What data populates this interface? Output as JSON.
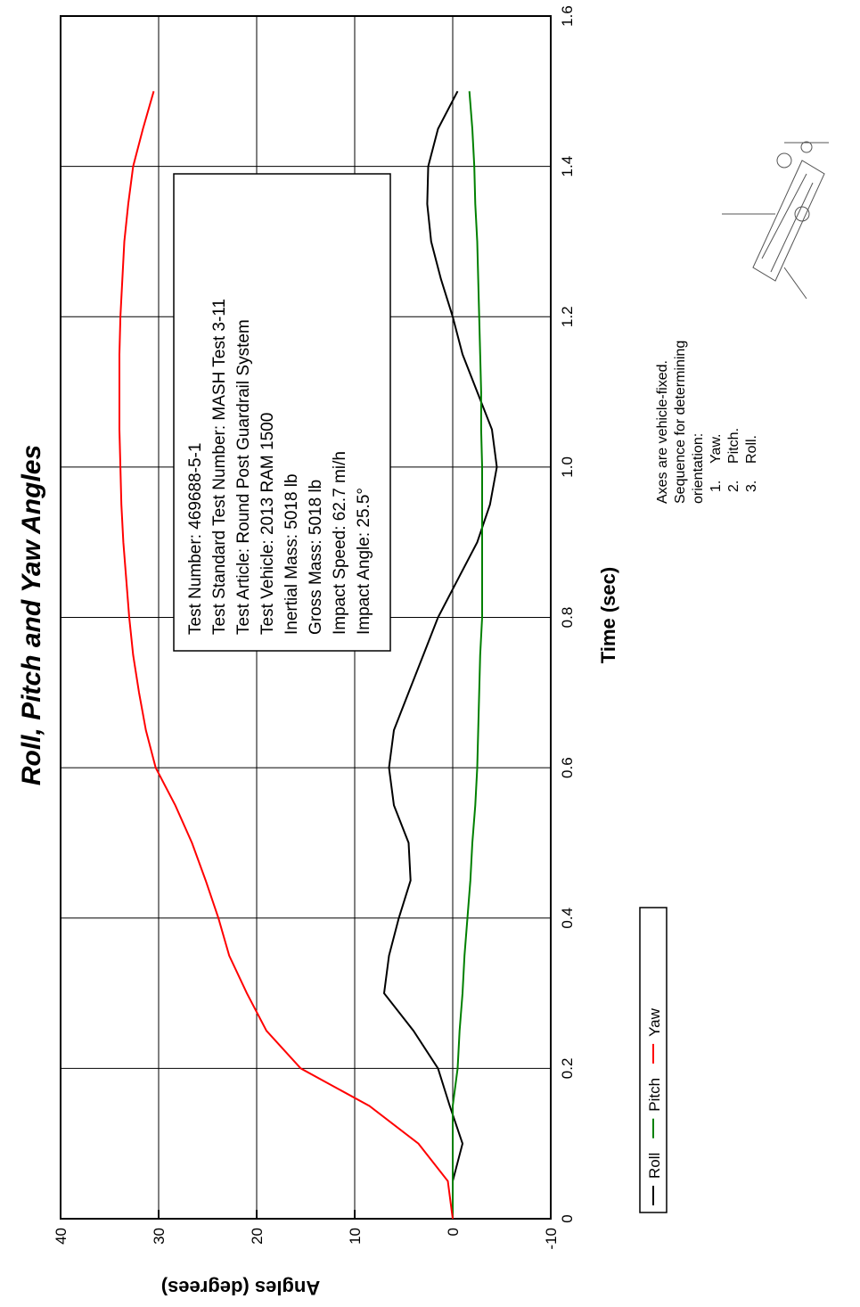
{
  "chart_data": {
    "type": "line",
    "title": "Roll, Pitch and Yaw Angles",
    "x_label": "Time (sec)",
    "y_label": "Angles (degrees)",
    "x": [
      0,
      0.05,
      0.1,
      0.15,
      0.2,
      0.25,
      0.3,
      0.35,
      0.4,
      0.45,
      0.5,
      0.55,
      0.6,
      0.65,
      0.7,
      0.75,
      0.8,
      0.85,
      0.9,
      0.95,
      1.0,
      1.05,
      1.1,
      1.15,
      1.2,
      1.25,
      1.3,
      1.35,
      1.4,
      1.45,
      1.5
    ],
    "series": [
      {
        "name": "Roll",
        "color": "#000000",
        "values": [
          0,
          0,
          -1,
          0.3,
          1.5,
          4,
          7,
          6.5,
          5.5,
          4.3,
          4.5,
          6,
          6.5,
          6,
          4.5,
          3,
          1.5,
          -0.5,
          -2.5,
          -3.8,
          -4.5,
          -4,
          -2.5,
          -1,
          0,
          1.2,
          2.2,
          2.6,
          2.5,
          1.5,
          -0.5
        ]
      },
      {
        "name": "Pitch",
        "color": "#008000",
        "values": [
          0,
          0,
          0,
          0,
          -0.5,
          -0.7,
          -1,
          -1.2,
          -1.5,
          -1.8,
          -2,
          -2.3,
          -2.5,
          -2.6,
          -2.7,
          -2.8,
          -3,
          -3,
          -3,
          -3,
          -3,
          -2.9,
          -2.9,
          -2.8,
          -2.7,
          -2.6,
          -2.5,
          -2.3,
          -2.2,
          -2,
          -1.7
        ]
      },
      {
        "name": "Yaw",
        "color": "#ff0000",
        "values": [
          0,
          0.5,
          3.5,
          8.5,
          15.5,
          19,
          21,
          22.8,
          23.9,
          25.2,
          26.6,
          28.3,
          30.3,
          31.3,
          32,
          32.6,
          33,
          33.3,
          33.6,
          33.8,
          33.9,
          34,
          34,
          34,
          33.9,
          33.7,
          33.5,
          33.1,
          32.6,
          31.6,
          30.5
        ]
      }
    ],
    "xlim": [
      0,
      1.6
    ],
    "xticks": [
      0,
      0.2,
      0.4,
      0.6,
      0.8,
      {
        "value": 1.0,
        "label": "1.0"
      },
      1.2,
      1.4,
      1.6
    ],
    "ylim": [
      -10,
      40
    ],
    "yticks": [
      40,
      30,
      20,
      10,
      0,
      -10
    ],
    "grid": true,
    "info_box": [
      "Test Number: 469688-5-1",
      "Test Standard Test Number: MASH Test 3-11",
      "Test Article: Round Post Guardrail System",
      "Test Vehicle: 2013 RAM 1500",
      "Inertial Mass: 5018 lb",
      "Gross Mass: 5018 lb",
      "Impact Speed: 62.7 mi/h",
      "Impact Angle: 25.5°"
    ],
    "notes": [
      "Axes are vehicle-fixed.",
      "Sequence for determining",
      "orientation:"
    ],
    "sequence": [
      [
        "1.",
        "Yaw."
      ],
      [
        "2.",
        "Pitch."
      ],
      [
        "3.",
        "Roll."
      ]
    ]
  }
}
